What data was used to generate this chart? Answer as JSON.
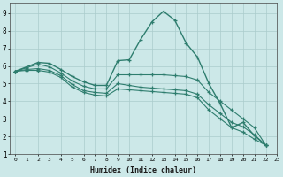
{
  "xlabel": "Humidex (Indice chaleur)",
  "bg_color": "#cce8e8",
  "grid_color": "#aacccc",
  "line_color": "#2e7d6e",
  "xlim": [
    -0.5,
    23
  ],
  "ylim": [
    1,
    9.6
  ],
  "yticks": [
    1,
    2,
    3,
    4,
    5,
    6,
    7,
    8,
    9
  ],
  "xticks": [
    0,
    1,
    2,
    3,
    4,
    5,
    6,
    7,
    8,
    9,
    10,
    11,
    12,
    13,
    14,
    15,
    16,
    17,
    18,
    19,
    20,
    21,
    22,
    23
  ],
  "series": [
    [
      5.7,
      5.95,
      6.2,
      6.15,
      5.8,
      5.4,
      5.1,
      4.9,
      4.9,
      6.3,
      6.35,
      7.5,
      8.5,
      9.1,
      8.6,
      7.3,
      6.5,
      5.0,
      3.85,
      2.5,
      2.8,
      2.05,
      1.5
    ],
    [
      5.7,
      5.9,
      6.1,
      5.95,
      5.6,
      5.15,
      4.85,
      4.7,
      4.7,
      5.5,
      5.5,
      5.5,
      5.5,
      5.5,
      5.45,
      5.4,
      5.2,
      4.5,
      4.0,
      3.5,
      3.0,
      2.5,
      1.5
    ],
    [
      5.7,
      5.8,
      5.85,
      5.75,
      5.45,
      4.95,
      4.6,
      4.5,
      4.45,
      5.0,
      4.9,
      4.8,
      4.75,
      4.7,
      4.65,
      4.6,
      4.4,
      3.8,
      3.3,
      2.8,
      2.55,
      2.1,
      1.5
    ],
    [
      5.7,
      5.75,
      5.75,
      5.65,
      5.35,
      4.8,
      4.5,
      4.35,
      4.3,
      4.7,
      4.65,
      4.6,
      4.55,
      4.5,
      4.45,
      4.4,
      4.2,
      3.5,
      3.0,
      2.5,
      2.25,
      1.85,
      1.5
    ]
  ]
}
